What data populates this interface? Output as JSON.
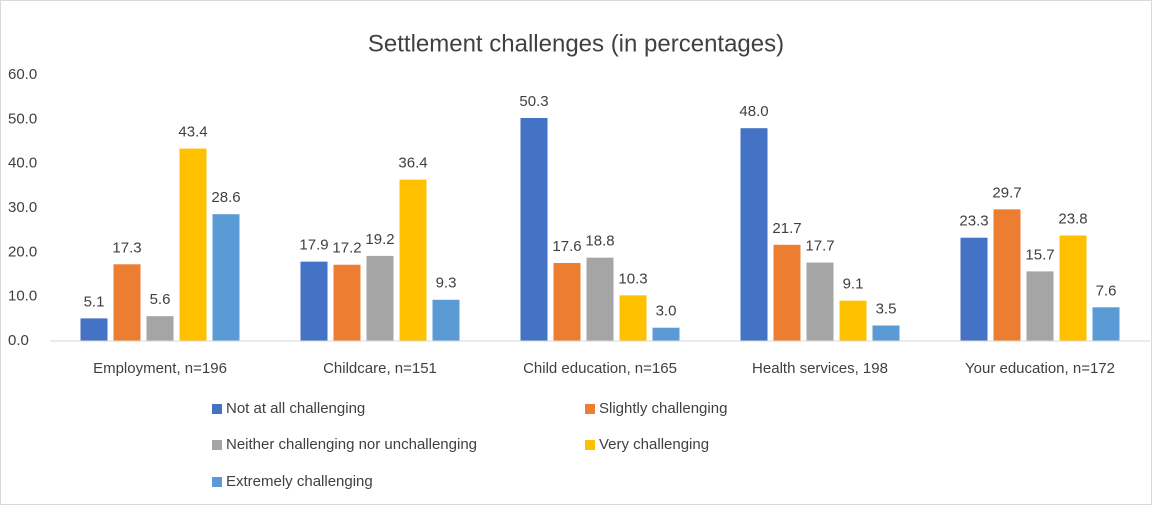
{
  "chart_data": {
    "type": "bar",
    "title": "Settlement challenges (in percentages)",
    "categories": [
      "Employment, n=196",
      "Childcare, n=151",
      "Child education, n=165",
      "Health services, 198",
      "Your education, n=172"
    ],
    "series": [
      {
        "name": "Not at all challenging",
        "color": "#4472c4",
        "values": [
          5.1,
          17.9,
          50.3,
          48.0,
          23.3
        ],
        "value_labels": [
          "5.1",
          "17.9",
          "50.3",
          "48.0",
          "23.3"
        ]
      },
      {
        "name": "Slightly challenging",
        "color": "#ed7d31",
        "values": [
          17.3,
          17.2,
          17.6,
          21.7,
          29.7
        ],
        "value_labels": [
          "17.3",
          "17.2",
          "17.6",
          "21.7",
          "29.7"
        ]
      },
      {
        "name": "Neither challenging nor unchallenging",
        "color": "#a5a5a5",
        "values": [
          5.6,
          19.2,
          18.8,
          17.7,
          15.7
        ],
        "value_labels": [
          "5.6",
          "19.2",
          "18.8",
          "17.7",
          "15.7"
        ]
      },
      {
        "name": "Very challenging",
        "color": "#ffc000",
        "values": [
          43.4,
          36.4,
          10.3,
          9.1,
          23.8
        ],
        "value_labels": [
          "43.4",
          "36.4",
          "10.3",
          "9.1",
          "23.8"
        ]
      },
      {
        "name": "Extremely challenging",
        "color": "#5b9bd5",
        "values": [
          28.6,
          9.3,
          3.0,
          3.5,
          7.6
        ],
        "value_labels": [
          "28.6",
          "9.3",
          "3.0",
          "3.5",
          "7.6"
        ]
      }
    ],
    "ylim": [
      0,
      60
    ],
    "yticks": [
      {
        "value": 0,
        "label": "0.0"
      },
      {
        "value": 10,
        "label": "10.0"
      },
      {
        "value": 20,
        "label": "20.0"
      },
      {
        "value": 30,
        "label": "30.0"
      },
      {
        "value": 40,
        "label": "40.0"
      },
      {
        "value": 50,
        "label": "50.0"
      },
      {
        "value": 60,
        "label": "60.0"
      }
    ],
    "grid": false
  }
}
